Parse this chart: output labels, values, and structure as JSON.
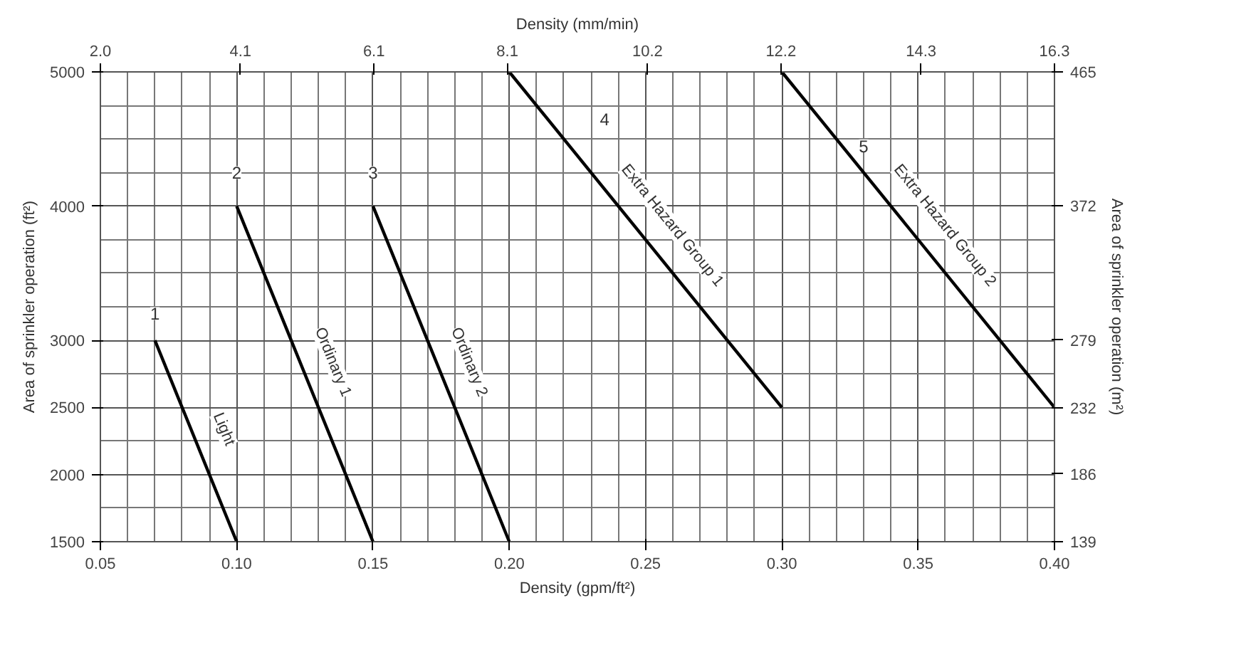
{
  "chart_data": {
    "type": "line",
    "xlabel": "Density (gpm/ft²)",
    "ylabel": "Area of sprinkler operation (ft²)",
    "y2label": "Area of sprinkler operation (m²)",
    "x2label": "Density (mm/min)",
    "xlim": [
      0.05,
      0.4
    ],
    "xticks": [
      {
        "value": 0.05,
        "label": "0.05"
      },
      {
        "value": 0.1,
        "label": "0.10"
      },
      {
        "value": 0.15,
        "label": "0.15"
      },
      {
        "value": 0.2,
        "label": "0.20"
      },
      {
        "value": 0.25,
        "label": "0.25"
      },
      {
        "value": 0.3,
        "label": "0.30"
      },
      {
        "value": 0.35,
        "label": "0.35"
      },
      {
        "value": 0.4,
        "label": "0.40"
      }
    ],
    "x2lim": [
      2.0,
      16.3
    ],
    "x2ticks": [
      {
        "value": 2.0,
        "label": "2.0"
      },
      {
        "value": 4.1,
        "label": "4.1"
      },
      {
        "value": 6.1,
        "label": "6.1"
      },
      {
        "value": 8.1,
        "label": "8.1"
      },
      {
        "value": 10.2,
        "label": "10.2"
      },
      {
        "value": 12.2,
        "label": "12.2"
      },
      {
        "value": 14.3,
        "label": "14.3"
      },
      {
        "value": 16.3,
        "label": "16.3"
      }
    ],
    "ylim": [
      1500,
      5000
    ],
    "yticks": [
      1500,
      2000,
      2500,
      3000,
      4000,
      5000
    ],
    "y2lim": [
      139,
      465
    ],
    "y2ticks": [
      139,
      186,
      232,
      279,
      372,
      465
    ],
    "grid": true,
    "line_style": "solid",
    "marker": "none",
    "series": [
      {
        "name": "Light",
        "color": "#000000",
        "x": [
          0.07,
          0.1
        ],
        "values": [
          3000,
          1500
        ]
      },
      {
        "name": "Ordinary 1",
        "color": "#000000",
        "x": [
          0.1,
          0.15
        ],
        "values": [
          4000,
          1500
        ]
      },
      {
        "name": "Ordinary 2",
        "color": "#000000",
        "x": [
          0.15,
          0.2
        ],
        "values": [
          4000,
          1500
        ]
      },
      {
        "name": "Extra Hazard Group 1",
        "color": "#000000",
        "x": [
          0.2,
          0.3
        ],
        "values": [
          5000,
          2500
        ]
      },
      {
        "name": "Extra Hazard Group 2",
        "color": "#000000",
        "x": [
          0.3,
          0.4
        ],
        "values": [
          5000,
          2500
        ]
      }
    ],
    "annotations": [
      {
        "text": "1",
        "x": 0.07,
        "y": 3200
      },
      {
        "text": "2",
        "x": 0.1,
        "y": 4250
      },
      {
        "text": "3",
        "x": 0.15,
        "y": 4250
      },
      {
        "text": "4",
        "x": 0.235,
        "y": 4650
      },
      {
        "text": "5",
        "x": 0.33,
        "y": 4450
      }
    ]
  }
}
